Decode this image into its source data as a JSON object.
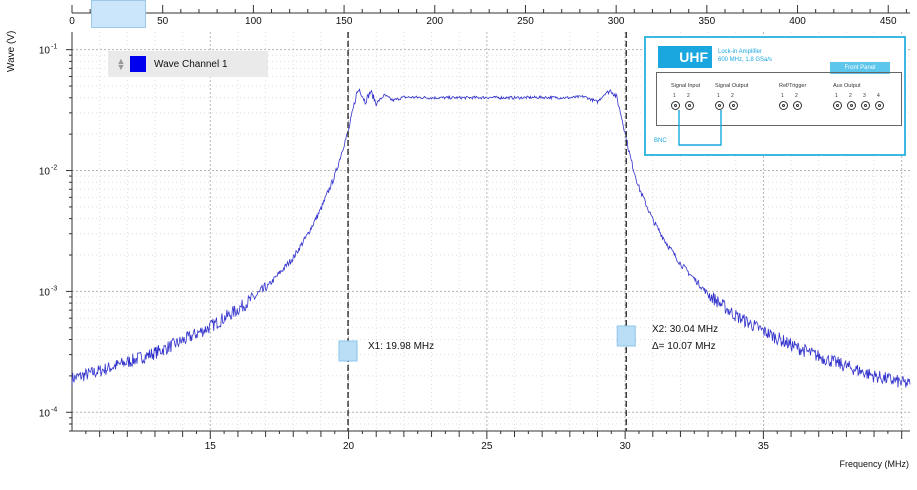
{
  "chart_data": {
    "type": "line",
    "title": "",
    "xlabel": "Frequency (MHz)",
    "ylabel": "Wave (V)",
    "y_scale": "log",
    "xlim": [
      10,
      40.3
    ],
    "ylim": [
      7e-05,
      0.14
    ],
    "x_ticks": [
      15,
      20,
      25,
      30,
      35
    ],
    "x_tick_labels": [
      "15",
      "20",
      "25",
      "30",
      "35"
    ],
    "y_ticks": [
      0.0001,
      0.001,
      0.01,
      0.1
    ],
    "y_tick_base": "10",
    "y_tick_exponents": [
      "-4",
      "-3",
      "-2",
      "-1"
    ],
    "grid": true,
    "legend": "top-left",
    "series": [
      {
        "name": "Wave Channel 1",
        "color": "#3333cc",
        "x": [
          10.0,
          11.0,
          12.0,
          13.0,
          14.0,
          15.0,
          16.0,
          17.0,
          18.0,
          18.5,
          19.0,
          19.5,
          19.8,
          20.0,
          20.2,
          20.3,
          20.4,
          20.6,
          20.8,
          21.0,
          21.3,
          21.6,
          22.0,
          23.0,
          24.0,
          25.0,
          26.0,
          27.0,
          28.0,
          28.5,
          29.0,
          29.3,
          29.5,
          29.7,
          29.9,
          30.0,
          30.2,
          30.5,
          31.0,
          31.5,
          32.0,
          33.0,
          34.0,
          35.0,
          36.0,
          37.0,
          38.0,
          39.0,
          40.3
        ],
        "y": [
          0.00019,
          0.00022,
          0.00026,
          0.00031,
          0.00039,
          0.00051,
          0.00071,
          0.00105,
          0.0019,
          0.0029,
          0.0048,
          0.009,
          0.0155,
          0.0215,
          0.035,
          0.044,
          0.047,
          0.037,
          0.045,
          0.036,
          0.042,
          0.038,
          0.0405,
          0.04,
          0.04,
          0.0402,
          0.04,
          0.0403,
          0.04,
          0.041,
          0.037,
          0.044,
          0.046,
          0.04,
          0.026,
          0.0205,
          0.0125,
          0.0072,
          0.0039,
          0.0025,
          0.0017,
          0.00095,
          0.00063,
          0.00047,
          0.00036,
          0.00029,
          0.00024,
          0.0002,
          0.00017
        ]
      }
    ],
    "cursors": [
      {
        "name": "X1",
        "x": 19.98,
        "label": "X1: 19.98 MHz"
      },
      {
        "name": "X2",
        "x": 30.04,
        "label": "X2: 30.04 MHz",
        "delta_label": "Δ= 10.07 MHz"
      }
    ]
  },
  "overview": {
    "x_ticks": [
      0,
      50,
      100,
      150,
      200,
      250,
      300,
      350,
      400,
      450
    ],
    "x_tick_labels": [
      "0",
      "50",
      "100",
      "150",
      "200",
      "250",
      "300",
      "350",
      "400",
      "450"
    ],
    "range": [
      0,
      462
    ]
  },
  "device_panel": {
    "brand": "UHF",
    "subtitle_1": "Lock-in Amplifier",
    "subtitle_2": "600 MHz, 1.8 GSa/s",
    "button": "Front Panel",
    "groups": [
      "Signal Input",
      "Signal Output",
      "Ref/Trigger",
      "Aux Output"
    ],
    "connector_label": "BNC",
    "numbers": [
      "1",
      "2",
      "1",
      "2",
      "1",
      "2",
      "1",
      "2",
      "3",
      "4"
    ]
  },
  "colors": {
    "trace": "#3333cc",
    "cursor_box": "#b9def5",
    "panel_accent": "#1aa7df",
    "legend_swatch": "#0000ee"
  }
}
